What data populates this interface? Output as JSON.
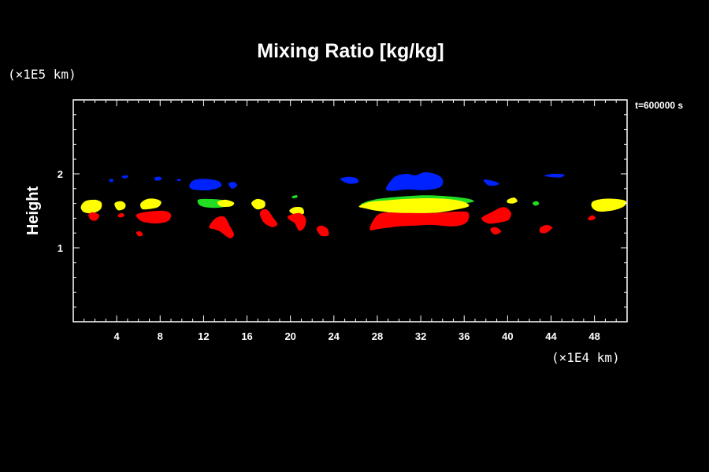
{
  "chart_data": {
    "type": "heatmap",
    "title": "Mixing Ratio [kg/kg]",
    "ylabel": "Height",
    "xlabel": "",
    "x_unit": "(×1E4 km)",
    "y_unit": "(×1E5 km)",
    "time_label": "t=600000 s",
    "xlim": [
      0,
      51
    ],
    "ylim": [
      0,
      3
    ],
    "x_ticks": [
      4,
      8,
      12,
      16,
      20,
      24,
      28,
      32,
      36,
      40,
      44,
      48
    ],
    "y_ticks": [
      1,
      2
    ],
    "grid": false,
    "colors": {
      "blue": "#0022ff",
      "green": "#22dd22",
      "yellow": "#ffff00",
      "red": "#ff0000",
      "background": "#000000",
      "frame": "#ffffff"
    },
    "regions": [
      {
        "color": "blue",
        "points": [
          [
            10.7,
            1.85
          ],
          [
            11.2,
            1.92
          ],
          [
            12.3,
            1.93
          ],
          [
            13.4,
            1.9
          ],
          [
            13.6,
            1.83
          ],
          [
            12.5,
            1.78
          ],
          [
            11.0,
            1.79
          ]
        ]
      },
      {
        "color": "blue",
        "points": [
          [
            14.3,
            1.87
          ],
          [
            14.8,
            1.89
          ],
          [
            15.1,
            1.84
          ],
          [
            14.6,
            1.8
          ]
        ]
      },
      {
        "color": "blue",
        "points": [
          [
            3.3,
            1.92
          ],
          [
            3.6,
            1.93
          ],
          [
            3.7,
            1.9
          ],
          [
            3.4,
            1.89
          ]
        ]
      },
      {
        "color": "blue",
        "points": [
          [
            4.5,
            1.97
          ],
          [
            5.0,
            1.98
          ],
          [
            5.0,
            1.95
          ],
          [
            4.6,
            1.94
          ]
        ]
      },
      {
        "color": "blue",
        "points": [
          [
            7.5,
            1.95
          ],
          [
            8.0,
            1.96
          ],
          [
            8.1,
            1.92
          ],
          [
            7.6,
            1.91
          ]
        ]
      },
      {
        "color": "blue",
        "points": [
          [
            9.5,
            1.92
          ],
          [
            9.9,
            1.93
          ],
          [
            9.8,
            1.9
          ]
        ]
      },
      {
        "color": "blue",
        "points": [
          [
            24.6,
            1.93
          ],
          [
            25.3,
            1.96
          ],
          [
            26.1,
            1.94
          ],
          [
            26.2,
            1.88
          ],
          [
            25.3,
            1.87
          ]
        ]
      },
      {
        "color": "blue",
        "points": [
          [
            28.8,
            1.8
          ],
          [
            29.6,
            1.96
          ],
          [
            30.7,
            2.0
          ],
          [
            31.5,
            1.98
          ],
          [
            32.3,
            2.02
          ],
          [
            33.3,
            2.0
          ],
          [
            34.0,
            1.93
          ],
          [
            33.8,
            1.82
          ],
          [
            32.3,
            1.78
          ],
          [
            30.8,
            1.79
          ],
          [
            29.4,
            1.77
          ]
        ]
      },
      {
        "color": "blue",
        "points": [
          [
            37.8,
            1.92
          ],
          [
            38.8,
            1.9
          ],
          [
            39.2,
            1.86
          ],
          [
            38.3,
            1.84
          ]
        ]
      },
      {
        "color": "blue",
        "points": [
          [
            43.4,
            1.97
          ],
          [
            44.1,
            2.0
          ],
          [
            45.2,
            1.99
          ],
          [
            44.8,
            1.95
          ]
        ]
      },
      {
        "color": "green",
        "points": [
          [
            11.5,
            1.65
          ],
          [
            12.6,
            1.66
          ],
          [
            13.8,
            1.64
          ],
          [
            14.0,
            1.56
          ],
          [
            12.8,
            1.54
          ],
          [
            11.7,
            1.57
          ]
        ]
      },
      {
        "color": "green",
        "points": [
          [
            20.2,
            1.7
          ],
          [
            20.6,
            1.71
          ],
          [
            20.6,
            1.68
          ],
          [
            20.2,
            1.67
          ]
        ]
      },
      {
        "color": "green",
        "points": [
          [
            26.6,
            1.6
          ],
          [
            28.0,
            1.66
          ],
          [
            30.0,
            1.69
          ],
          [
            32.5,
            1.71
          ],
          [
            35.0,
            1.69
          ],
          [
            36.5,
            1.66
          ],
          [
            36.8,
            1.62
          ],
          [
            35.0,
            1.6
          ],
          [
            31.0,
            1.61
          ],
          [
            27.0,
            1.57
          ]
        ]
      },
      {
        "color": "green",
        "points": [
          [
            42.3,
            1.61
          ],
          [
            42.7,
            1.63
          ],
          [
            42.9,
            1.59
          ],
          [
            42.5,
            1.57
          ]
        ]
      },
      {
        "color": "yellow",
        "points": [
          [
            0.7,
            1.55
          ],
          [
            1.1,
            1.63
          ],
          [
            2.0,
            1.65
          ],
          [
            2.6,
            1.61
          ],
          [
            2.5,
            1.52
          ],
          [
            1.8,
            1.47
          ],
          [
            1.0,
            1.48
          ]
        ]
      },
      {
        "color": "yellow",
        "points": [
          [
            3.8,
            1.6
          ],
          [
            4.4,
            1.63
          ],
          [
            4.8,
            1.59
          ],
          [
            4.7,
            1.53
          ],
          [
            4.1,
            1.51
          ]
        ]
      },
      {
        "color": "yellow",
        "points": [
          [
            6.2,
            1.6
          ],
          [
            6.8,
            1.66
          ],
          [
            7.6,
            1.66
          ],
          [
            8.1,
            1.62
          ],
          [
            7.8,
            1.55
          ],
          [
            6.8,
            1.52
          ],
          [
            6.3,
            1.53
          ]
        ]
      },
      {
        "color": "yellow",
        "points": [
          [
            13.3,
            1.62
          ],
          [
            14.0,
            1.65
          ],
          [
            14.8,
            1.61
          ],
          [
            14.5,
            1.56
          ],
          [
            13.6,
            1.56
          ]
        ]
      },
      {
        "color": "yellow",
        "points": [
          [
            16.4,
            1.6
          ],
          [
            16.9,
            1.66
          ],
          [
            17.6,
            1.63
          ],
          [
            17.6,
            1.55
          ],
          [
            16.9,
            1.52
          ]
        ]
      },
      {
        "color": "yellow",
        "points": [
          [
            19.9,
            1.5
          ],
          [
            20.4,
            1.55
          ],
          [
            21.1,
            1.54
          ],
          [
            21.2,
            1.46
          ],
          [
            20.4,
            1.45
          ]
        ]
      },
      {
        "color": "yellow",
        "points": [
          [
            26.3,
            1.56
          ],
          [
            27.3,
            1.62
          ],
          [
            28.8,
            1.64
          ],
          [
            30.5,
            1.66
          ],
          [
            32.5,
            1.67
          ],
          [
            34.5,
            1.66
          ],
          [
            36.0,
            1.62
          ],
          [
            36.4,
            1.56
          ],
          [
            35.0,
            1.51
          ],
          [
            33.0,
            1.47
          ],
          [
            30.0,
            1.47
          ],
          [
            28.0,
            1.5
          ],
          [
            27.0,
            1.53
          ]
        ]
      },
      {
        "color": "yellow",
        "points": [
          [
            40.0,
            1.65
          ],
          [
            40.6,
            1.68
          ],
          [
            40.9,
            1.63
          ],
          [
            40.5,
            1.6
          ],
          [
            40.0,
            1.61
          ]
        ]
      },
      {
        "color": "yellow",
        "points": [
          [
            47.8,
            1.62
          ],
          [
            48.7,
            1.66
          ],
          [
            50.0,
            1.66
          ],
          [
            50.9,
            1.63
          ],
          [
            50.7,
            1.56
          ],
          [
            49.8,
            1.51
          ],
          [
            48.5,
            1.49
          ],
          [
            47.8,
            1.54
          ]
        ]
      },
      {
        "color": "red",
        "points": [
          [
            1.4,
            1.45
          ],
          [
            1.8,
            1.48
          ],
          [
            2.4,
            1.44
          ],
          [
            2.1,
            1.37
          ],
          [
            1.6,
            1.38
          ]
        ]
      },
      {
        "color": "red",
        "points": [
          [
            4.1,
            1.44
          ],
          [
            4.5,
            1.47
          ],
          [
            4.7,
            1.43
          ],
          [
            4.3,
            1.41
          ]
        ]
      },
      {
        "color": "red",
        "points": [
          [
            5.8,
            1.44
          ],
          [
            6.5,
            1.48
          ],
          [
            8.3,
            1.5
          ],
          [
            9.0,
            1.45
          ],
          [
            8.7,
            1.36
          ],
          [
            7.6,
            1.33
          ],
          [
            6.3,
            1.36
          ]
        ]
      },
      {
        "color": "red",
        "points": [
          [
            5.8,
            1.21
          ],
          [
            6.2,
            1.22
          ],
          [
            6.4,
            1.17
          ],
          [
            6.0,
            1.16
          ]
        ]
      },
      {
        "color": "red",
        "points": [
          [
            12.5,
            1.28
          ],
          [
            13.1,
            1.4
          ],
          [
            13.9,
            1.42
          ],
          [
            14.4,
            1.3
          ],
          [
            14.8,
            1.18
          ],
          [
            14.4,
            1.13
          ],
          [
            13.5,
            1.22
          ],
          [
            13.0,
            1.25
          ]
        ]
      },
      {
        "color": "red",
        "points": [
          [
            17.2,
            1.48
          ],
          [
            17.8,
            1.52
          ],
          [
            18.4,
            1.41
          ],
          [
            18.8,
            1.32
          ],
          [
            18.3,
            1.28
          ],
          [
            17.5,
            1.35
          ]
        ]
      },
      {
        "color": "red",
        "points": [
          [
            19.8,
            1.43
          ],
          [
            20.8,
            1.47
          ],
          [
            21.4,
            1.4
          ],
          [
            21.3,
            1.28
          ],
          [
            20.8,
            1.23
          ],
          [
            20.4,
            1.33
          ],
          [
            19.9,
            1.38
          ]
        ]
      },
      {
        "color": "red",
        "points": [
          [
            22.4,
            1.26
          ],
          [
            22.8,
            1.3
          ],
          [
            23.4,
            1.26
          ],
          [
            23.5,
            1.17
          ],
          [
            22.9,
            1.16
          ],
          [
            22.6,
            1.2
          ]
        ]
      },
      {
        "color": "red",
        "points": [
          [
            27.3,
            1.25
          ],
          [
            28.2,
            1.46
          ],
          [
            30.5,
            1.47
          ],
          [
            33.0,
            1.47
          ],
          [
            35.5,
            1.49
          ],
          [
            36.4,
            1.47
          ],
          [
            36.2,
            1.34
          ],
          [
            35.0,
            1.29
          ],
          [
            33.0,
            1.31
          ],
          [
            31.5,
            1.3
          ],
          [
            30.0,
            1.29
          ],
          [
            28.3,
            1.26
          ]
        ]
      },
      {
        "color": "red",
        "points": [
          [
            37.6,
            1.4
          ],
          [
            38.5,
            1.48
          ],
          [
            39.6,
            1.55
          ],
          [
            40.3,
            1.48
          ],
          [
            40.1,
            1.38
          ],
          [
            39.2,
            1.34
          ],
          [
            38.2,
            1.33
          ]
        ]
      },
      {
        "color": "red",
        "points": [
          [
            38.4,
            1.25
          ],
          [
            38.9,
            1.28
          ],
          [
            39.4,
            1.22
          ],
          [
            38.8,
            1.18
          ]
        ]
      },
      {
        "color": "red",
        "points": [
          [
            43.0,
            1.27
          ],
          [
            43.6,
            1.31
          ],
          [
            44.1,
            1.27
          ],
          [
            43.5,
            1.2
          ],
          [
            43.0,
            1.21
          ]
        ]
      },
      {
        "color": "red",
        "points": [
          [
            47.4,
            1.4
          ],
          [
            47.8,
            1.44
          ],
          [
            48.1,
            1.4
          ],
          [
            47.6,
            1.37
          ]
        ]
      }
    ]
  }
}
